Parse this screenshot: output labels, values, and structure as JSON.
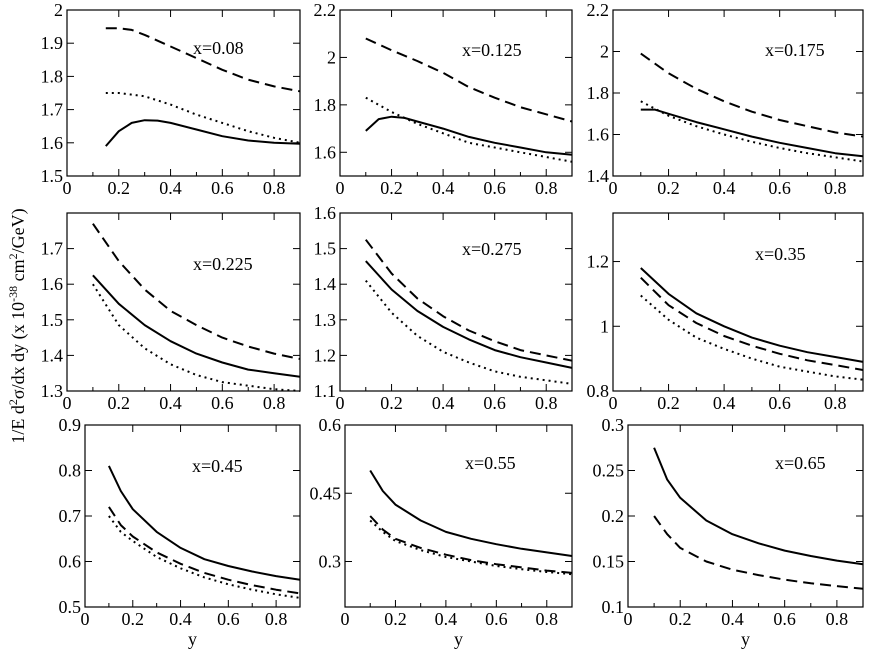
{
  "ylabel": "1/E d²σ/dx dy (x 10⁻³⁸ cm²/GeV)",
  "ylabel_parts": {
    "a": "1/E d",
    "b": "2",
    "c": "σ/dx dy (x 10",
    "d": "-38",
    "e": " cm",
    "f": "2",
    "g": "/GeV)"
  },
  "chart_data": [
    {
      "type": "line",
      "annotation": "x=0.08",
      "xlabel": "",
      "xlim": [
        0,
        0.9
      ],
      "ylim": [
        1.5,
        2.0
      ],
      "xticks": [
        "0",
        "0.2",
        "0.4",
        "0.6",
        "0.8"
      ],
      "yticks": [
        "1.5",
        "1.6",
        "1.7",
        "1.8",
        "1.9",
        "2"
      ],
      "series": [
        {
          "style": "dashed",
          "x": [
            0.15,
            0.2,
            0.25,
            0.3,
            0.4,
            0.5,
            0.6,
            0.7,
            0.8,
            0.9
          ],
          "y": [
            1.945,
            1.945,
            1.94,
            1.925,
            1.89,
            1.855,
            1.82,
            1.79,
            1.77,
            1.755
          ]
        },
        {
          "style": "dotted",
          "x": [
            0.15,
            0.2,
            0.3,
            0.4,
            0.5,
            0.6,
            0.7,
            0.8,
            0.9
          ],
          "y": [
            1.75,
            1.75,
            1.74,
            1.715,
            1.685,
            1.66,
            1.635,
            1.615,
            1.6
          ]
        },
        {
          "style": "solid",
          "x": [
            0.15,
            0.2,
            0.25,
            0.3,
            0.35,
            0.4,
            0.5,
            0.6,
            0.7,
            0.8,
            0.9
          ],
          "y": [
            1.59,
            1.635,
            1.66,
            1.668,
            1.667,
            1.66,
            1.64,
            1.62,
            1.607,
            1.6,
            1.597
          ]
        }
      ]
    },
    {
      "type": "line",
      "annotation": "x=0.125",
      "xlabel": "",
      "xlim": [
        0,
        0.9
      ],
      "ylim": [
        1.5,
        2.2
      ],
      "xticks": [
        "0",
        "0.2",
        "0.4",
        "0.6",
        "0.8"
      ],
      "yticks": [
        "1.6",
        "1.8",
        "2",
        "2.2"
      ],
      "series": [
        {
          "style": "dashed",
          "x": [
            0.1,
            0.2,
            0.3,
            0.4,
            0.5,
            0.6,
            0.7,
            0.8,
            0.9
          ],
          "y": [
            2.08,
            2.03,
            1.985,
            1.935,
            1.875,
            1.83,
            1.79,
            1.76,
            1.73
          ]
        },
        {
          "style": "dotted",
          "x": [
            0.1,
            0.2,
            0.3,
            0.4,
            0.5,
            0.6,
            0.7,
            0.8,
            0.9
          ],
          "y": [
            1.83,
            1.77,
            1.72,
            1.68,
            1.64,
            1.62,
            1.6,
            1.58,
            1.56
          ]
        },
        {
          "style": "solid",
          "x": [
            0.1,
            0.15,
            0.2,
            0.25,
            0.3,
            0.4,
            0.5,
            0.6,
            0.7,
            0.8,
            0.9
          ],
          "y": [
            1.69,
            1.74,
            1.75,
            1.745,
            1.73,
            1.7,
            1.665,
            1.64,
            1.62,
            1.6,
            1.59
          ]
        }
      ]
    },
    {
      "type": "line",
      "annotation": "x=0.175",
      "xlabel": "",
      "xlim": [
        0,
        0.9
      ],
      "ylim": [
        1.4,
        2.2
      ],
      "xticks": [
        "0",
        "0.2",
        "0.4",
        "0.6",
        "0.8"
      ],
      "yticks": [
        "1.4",
        "1.6",
        "1.8",
        "2",
        "2.2"
      ],
      "series": [
        {
          "style": "dashed",
          "x": [
            0.1,
            0.2,
            0.3,
            0.4,
            0.5,
            0.6,
            0.7,
            0.8,
            0.9
          ],
          "y": [
            1.99,
            1.895,
            1.82,
            1.76,
            1.71,
            1.67,
            1.64,
            1.61,
            1.59
          ]
        },
        {
          "style": "dotted",
          "x": [
            0.1,
            0.2,
            0.3,
            0.4,
            0.5,
            0.6,
            0.7,
            0.8,
            0.9
          ],
          "y": [
            1.76,
            1.69,
            1.64,
            1.6,
            1.565,
            1.535,
            1.51,
            1.49,
            1.47
          ]
        },
        {
          "style": "solid",
          "x": [
            0.1,
            0.15,
            0.2,
            0.3,
            0.4,
            0.5,
            0.6,
            0.7,
            0.8,
            0.9
          ],
          "y": [
            1.72,
            1.72,
            1.7,
            1.66,
            1.625,
            1.59,
            1.56,
            1.535,
            1.51,
            1.495
          ]
        }
      ]
    },
    {
      "type": "line",
      "annotation": "x=0.225",
      "xlabel": "",
      "xlim": [
        0,
        0.9
      ],
      "ylim": [
        1.3,
        1.8
      ],
      "xticks": [
        "0",
        "0.2",
        "0.4",
        "0.6",
        "0.8"
      ],
      "yticks": [
        "1.3",
        "1.4",
        "1.5",
        "1.6",
        "1.7"
      ],
      "series": [
        {
          "style": "dashed",
          "x": [
            0.1,
            0.2,
            0.3,
            0.4,
            0.5,
            0.6,
            0.7,
            0.8,
            0.9
          ],
          "y": [
            1.77,
            1.665,
            1.585,
            1.525,
            1.485,
            1.45,
            1.425,
            1.405,
            1.39
          ]
        },
        {
          "style": "solid",
          "x": [
            0.1,
            0.2,
            0.3,
            0.4,
            0.5,
            0.6,
            0.7,
            0.8,
            0.9
          ],
          "y": [
            1.625,
            1.545,
            1.485,
            1.44,
            1.405,
            1.38,
            1.36,
            1.35,
            1.34
          ]
        },
        {
          "style": "dotted",
          "x": [
            0.1,
            0.2,
            0.3,
            0.4,
            0.5,
            0.6,
            0.7,
            0.8,
            0.9
          ],
          "y": [
            1.6,
            1.485,
            1.42,
            1.375,
            1.345,
            1.325,
            1.315,
            1.305,
            1.3
          ]
        }
      ]
    },
    {
      "type": "line",
      "annotation": "x=0.275",
      "xlabel": "",
      "xlim": [
        0,
        0.9
      ],
      "ylim": [
        1.1,
        1.6
      ],
      "xticks": [
        "0",
        "0.2",
        "0.4",
        "0.6",
        "0.8"
      ],
      "yticks": [
        "1.1",
        "1.2",
        "1.3",
        "1.4",
        "1.5",
        "1.6"
      ],
      "series": [
        {
          "style": "dashed",
          "x": [
            0.1,
            0.2,
            0.3,
            0.4,
            0.5,
            0.6,
            0.7,
            0.8,
            0.9
          ],
          "y": [
            1.525,
            1.43,
            1.36,
            1.31,
            1.27,
            1.24,
            1.215,
            1.2,
            1.185
          ]
        },
        {
          "style": "solid",
          "x": [
            0.1,
            0.2,
            0.3,
            0.4,
            0.5,
            0.6,
            0.7,
            0.8,
            0.9
          ],
          "y": [
            1.465,
            1.385,
            1.325,
            1.28,
            1.245,
            1.215,
            1.195,
            1.18,
            1.165
          ]
        },
        {
          "style": "dotted",
          "x": [
            0.1,
            0.2,
            0.3,
            0.4,
            0.5,
            0.6,
            0.7,
            0.8,
            0.9
          ],
          "y": [
            1.41,
            1.32,
            1.255,
            1.21,
            1.18,
            1.155,
            1.14,
            1.13,
            1.12
          ]
        }
      ]
    },
    {
      "type": "line",
      "annotation": "x=0.35",
      "xlabel": "",
      "xlim": [
        0,
        0.9
      ],
      "ylim": [
        0.8,
        1.35
      ],
      "xticks": [
        "0",
        "0.2",
        "0.4",
        "0.6",
        "0.8"
      ],
      "yticks": [
        "0.8",
        "1",
        "1.2"
      ],
      "series": [
        {
          "style": "solid",
          "x": [
            0.1,
            0.2,
            0.3,
            0.4,
            0.5,
            0.6,
            0.7,
            0.8,
            0.9
          ],
          "y": [
            1.18,
            1.1,
            1.04,
            1.0,
            0.965,
            0.94,
            0.92,
            0.905,
            0.89
          ]
        },
        {
          "style": "dashed",
          "x": [
            0.1,
            0.2,
            0.3,
            0.4,
            0.5,
            0.6,
            0.7,
            0.8,
            0.9
          ],
          "y": [
            1.15,
            1.065,
            1.01,
            0.97,
            0.94,
            0.915,
            0.895,
            0.88,
            0.865
          ]
        },
        {
          "style": "dotted",
          "x": [
            0.1,
            0.2,
            0.3,
            0.4,
            0.5,
            0.6,
            0.7,
            0.8,
            0.9
          ],
          "y": [
            1.095,
            1.02,
            0.965,
            0.93,
            0.9,
            0.875,
            0.86,
            0.845,
            0.835
          ]
        }
      ]
    },
    {
      "type": "line",
      "annotation": "x=0.45",
      "xlabel": "y",
      "xlim": [
        0,
        0.9
      ],
      "ylim": [
        0.5,
        0.9
      ],
      "xticks": [
        "0",
        "0.2",
        "0.4",
        "0.6",
        "0.8"
      ],
      "yticks": [
        "0.5",
        "0.6",
        "0.7",
        "0.8",
        "0.9"
      ],
      "series": [
        {
          "style": "solid",
          "x": [
            0.1,
            0.15,
            0.2,
            0.3,
            0.4,
            0.5,
            0.6,
            0.7,
            0.8,
            0.9
          ],
          "y": [
            0.81,
            0.755,
            0.715,
            0.665,
            0.63,
            0.605,
            0.59,
            0.578,
            0.568,
            0.56
          ]
        },
        {
          "style": "dashed",
          "x": [
            0.1,
            0.15,
            0.2,
            0.3,
            0.4,
            0.5,
            0.6,
            0.7,
            0.8,
            0.9
          ],
          "y": [
            0.72,
            0.68,
            0.655,
            0.62,
            0.595,
            0.575,
            0.56,
            0.548,
            0.538,
            0.53
          ]
        },
        {
          "style": "dotted",
          "x": [
            0.1,
            0.15,
            0.2,
            0.3,
            0.4,
            0.5,
            0.6,
            0.7,
            0.8,
            0.9
          ],
          "y": [
            0.7,
            0.665,
            0.645,
            0.61,
            0.585,
            0.565,
            0.55,
            0.538,
            0.528,
            0.52
          ]
        }
      ]
    },
    {
      "type": "line",
      "annotation": "x=0.55",
      "xlabel": "y",
      "xlim": [
        0,
        0.9
      ],
      "ylim": [
        0.2,
        0.6
      ],
      "xticks": [
        "0",
        "0.2",
        "0.4",
        "0.6",
        "0.8"
      ],
      "yticks": [
        "0.3",
        "0.45",
        "0.6"
      ],
      "series": [
        {
          "style": "solid",
          "x": [
            0.1,
            0.15,
            0.2,
            0.3,
            0.4,
            0.5,
            0.6,
            0.7,
            0.8,
            0.9
          ],
          "y": [
            0.5,
            0.455,
            0.425,
            0.39,
            0.365,
            0.35,
            0.338,
            0.328,
            0.32,
            0.312
          ]
        },
        {
          "style": "dashed",
          "x": [
            0.1,
            0.15,
            0.2,
            0.3,
            0.4,
            0.5,
            0.6,
            0.7,
            0.8,
            0.9
          ],
          "y": [
            0.4,
            0.37,
            0.35,
            0.33,
            0.315,
            0.303,
            0.294,
            0.287,
            0.28,
            0.275
          ]
        },
        {
          "style": "dotted",
          "x": [
            0.1,
            0.15,
            0.2,
            0.3,
            0.4,
            0.5,
            0.6,
            0.7,
            0.8,
            0.9
          ],
          "y": [
            0.39,
            0.365,
            0.345,
            0.325,
            0.31,
            0.3,
            0.29,
            0.283,
            0.277,
            0.272
          ]
        }
      ]
    },
    {
      "type": "line",
      "annotation": "x=0.65",
      "xlabel": "y",
      "xlim": [
        0,
        0.9
      ],
      "ylim": [
        0.1,
        0.3
      ],
      "xticks": [
        "0",
        "0.2",
        "0.4",
        "0.6",
        "0.8"
      ],
      "yticks": [
        "0.1",
        "0.15",
        "0.2",
        "0.25",
        "0.3"
      ],
      "series": [
        {
          "style": "solid",
          "x": [
            0.1,
            0.15,
            0.2,
            0.3,
            0.4,
            0.5,
            0.6,
            0.7,
            0.8,
            0.9
          ],
          "y": [
            0.275,
            0.24,
            0.22,
            0.195,
            0.18,
            0.17,
            0.162,
            0.156,
            0.151,
            0.147
          ]
        },
        {
          "style": "dashed",
          "x": [
            0.1,
            0.15,
            0.2,
            0.3,
            0.4,
            0.5,
            0.6,
            0.7,
            0.8,
            0.9
          ],
          "y": [
            0.2,
            0.18,
            0.165,
            0.15,
            0.141,
            0.135,
            0.13,
            0.126,
            0.123,
            0.12
          ]
        }
      ]
    }
  ]
}
